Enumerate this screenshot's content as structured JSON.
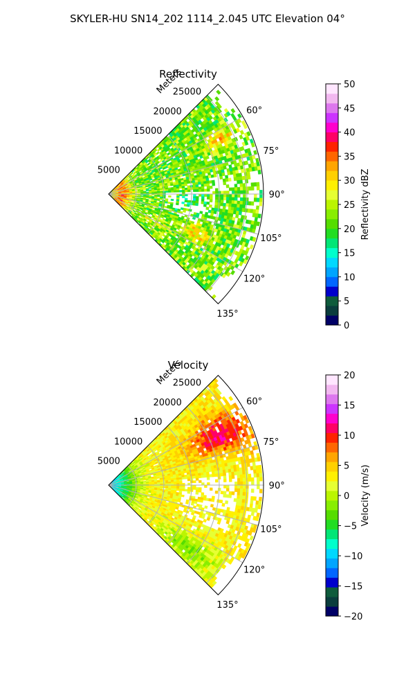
{
  "suptitle": "SKYLER-HU  SN14_202  1114_2.045 UTC Elevation 04°",
  "chart_data": [
    {
      "type": "heatmap",
      "subtype": "polar-sector-radar",
      "title": "Reflectivity",
      "radial_label": "Meters",
      "radial_ticks": [
        "5000",
        "10000",
        "15000",
        "20000",
        "25000"
      ],
      "radial_tick_values": [
        5000,
        10000,
        15000,
        20000,
        25000
      ],
      "angle_ticks": [
        "60°",
        "75°",
        "90°",
        "105°",
        "120°",
        "135°"
      ],
      "angle_tick_values": [
        60,
        75,
        90,
        105,
        120,
        135
      ],
      "theta_range_deg": [
        45,
        135
      ],
      "r_range_m": [
        0,
        28000
      ],
      "grid": true,
      "colorbar": {
        "label": "Reflectivity dBZ",
        "ticks": [
          "0",
          "5",
          "10",
          "15",
          "20",
          "25",
          "30",
          "35",
          "40",
          "45",
          "50"
        ],
        "range": [
          0,
          50
        ],
        "palette": [
          "#000066",
          "#0a3d3d",
          "#0f5c3c",
          "#0000cc",
          "#0066ff",
          "#00a5ff",
          "#00d8ff",
          "#00ffcc",
          "#00e676",
          "#22dd22",
          "#55dd00",
          "#88ee00",
          "#bbf500",
          "#e6ff33",
          "#fff000",
          "#ffd000",
          "#ffa500",
          "#ff6600",
          "#ff2200",
          "#ff0066",
          "#ff00cc",
          "#cc33ff",
          "#dd77ee",
          "#f2b8f0",
          "#ffe6ff"
        ]
      }
    },
    {
      "type": "heatmap",
      "subtype": "polar-sector-radar",
      "title": "Velocity",
      "radial_label": "Meters",
      "radial_ticks": [
        "5000",
        "10000",
        "15000",
        "20000",
        "25000"
      ],
      "radial_tick_values": [
        5000,
        10000,
        15000,
        20000,
        25000
      ],
      "angle_ticks": [
        "60°",
        "75°",
        "90°",
        "105°",
        "120°",
        "135°"
      ],
      "angle_tick_values": [
        60,
        75,
        90,
        105,
        120,
        135
      ],
      "theta_range_deg": [
        45,
        135
      ],
      "r_range_m": [
        0,
        28000
      ],
      "grid": true,
      "colorbar": {
        "label": "Velocity (m/s)",
        "ticks": [
          "20",
          "15",
          "10",
          "5",
          "0",
          "−5",
          "−10",
          "−15",
          "−20"
        ],
        "range": [
          -20,
          20
        ],
        "palette": [
          "#000066",
          "#0a3d3d",
          "#0f5c3c",
          "#0000cc",
          "#0066ff",
          "#00a5ff",
          "#00d8ff",
          "#00ffcc",
          "#00e676",
          "#22dd22",
          "#55dd00",
          "#88ee00",
          "#bbf500",
          "#e6ff33",
          "#fff000",
          "#ffd000",
          "#ffa500",
          "#ff6600",
          "#ff2200",
          "#ff0066",
          "#ff00cc",
          "#cc33ff",
          "#dd77ee",
          "#f2b8f0",
          "#ffe6ff"
        ]
      }
    }
  ]
}
